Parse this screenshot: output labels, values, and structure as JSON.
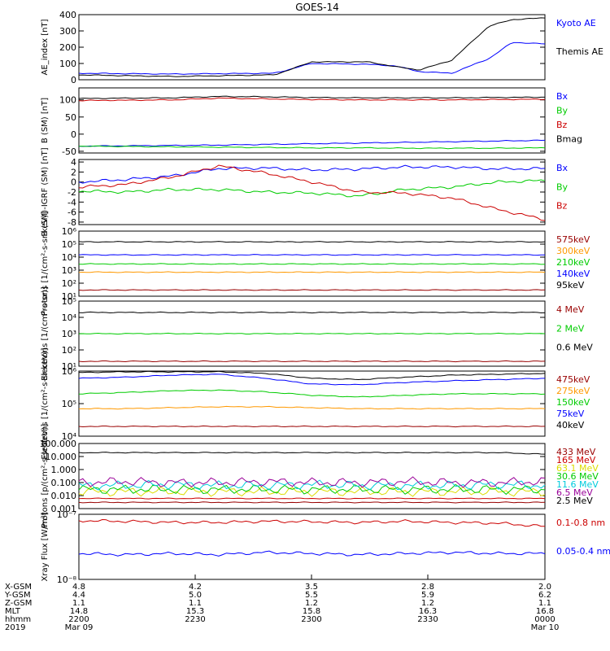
{
  "title": "GOES-14",
  "colors": {
    "black": "#000000",
    "blue": "#0000ff",
    "green": "#00cc00",
    "red": "#cc0000",
    "orange": "#ff9900",
    "yellow": "#dddd00",
    "cyan": "#00ccdd",
    "purple": "#990099",
    "darkred": "#990000"
  },
  "chart_data": [
    {
      "type": "line",
      "ylabel": "AE_index [nT]",
      "ylim": [
        0,
        400
      ],
      "yticks": [
        "0",
        "100",
        "200",
        "300",
        "400"
      ],
      "scale": "linear",
      "series": [
        {
          "name": "Kyoto AE",
          "color": "blue",
          "x": [
            0,
            0.2,
            0.42,
            0.5,
            0.62,
            0.68,
            0.73,
            0.8,
            0.88,
            0.93,
            1
          ],
          "values": [
            40,
            35,
            40,
            100,
            95,
            85,
            50,
            40,
            130,
            230,
            220
          ]
        },
        {
          "name": "Themis AE",
          "color": "black",
          "x": [
            0,
            0.2,
            0.42,
            0.5,
            0.62,
            0.68,
            0.73,
            0.8,
            0.88,
            0.93,
            1
          ],
          "values": [
            30,
            20,
            30,
            110,
            110,
            80,
            60,
            120,
            330,
            370,
            380
          ]
        }
      ]
    },
    {
      "type": "line",
      "ylabel": "B (SM) [nT]",
      "ylim": [
        -55,
        135
      ],
      "yticks": [
        "-50",
        "0",
        "50",
        "100"
      ],
      "scale": "linear",
      "series": [
        {
          "name": "Bx",
          "color": "blue",
          "values": [
            -35,
            -34,
            -33,
            -32,
            -30,
            -28,
            -26,
            -24,
            -22,
            -20,
            -18
          ]
        },
        {
          "name": "By",
          "color": "green",
          "values": [
            -35,
            -36,
            -37,
            -38,
            -39,
            -40,
            -40,
            -41,
            -41,
            -41,
            -40
          ]
        },
        {
          "name": "Bz",
          "color": "red",
          "values": [
            98,
            99,
            100,
            105,
            103,
            101,
            100,
            100,
            100,
            101,
            102
          ]
        },
        {
          "name": "Bmag",
          "color": "black",
          "values": [
            104,
            105,
            106,
            110,
            109,
            107,
            106,
            106,
            106,
            107,
            108
          ]
        }
      ]
    },
    {
      "type": "line",
      "ylabel": "B (SM)-IGRF (SM) [nT]",
      "ylim": [
        -8.5,
        4.5
      ],
      "yticks": [
        "-8",
        "-6",
        "-4",
        "-2",
        "0",
        "2",
        "4"
      ],
      "scale": "linear",
      "series": [
        {
          "name": "Bx",
          "color": "blue",
          "values": [
            0,
            0.5,
            1.2,
            2.7,
            2.8,
            2.4,
            2.6,
            3.0,
            3.0,
            2.6,
            2.7
          ]
        },
        {
          "name": "By",
          "color": "green",
          "values": [
            -1.8,
            -2.0,
            -1.5,
            -1.5,
            -2.0,
            -2.2,
            -2.8,
            -1.5,
            -1.0,
            0,
            0.3
          ]
        },
        {
          "name": "Bz",
          "color": "red",
          "values": [
            -1,
            -0.5,
            1.0,
            3.2,
            1.8,
            0,
            -2.0,
            -2.2,
            -3.2,
            -5.5,
            -7.5
          ]
        }
      ]
    },
    {
      "type": "line",
      "ylabel": "Protons [1/(cm²-s-sr-keV)]",
      "ylim": [
        10,
        1000000
      ],
      "yticks": [
        "10¹",
        "10²",
        "10³",
        "10⁴",
        "10⁵",
        "10⁶"
      ],
      "scale": "log",
      "series": [
        {
          "name": "575keV",
          "color": "darkred",
          "values": [
            30,
            30,
            30,
            30,
            30,
            30,
            30,
            30,
            30,
            30,
            30
          ]
        },
        {
          "name": "300keV",
          "color": "orange",
          "values": [
            700,
            700,
            700,
            700,
            700,
            700,
            700,
            700,
            700,
            700,
            700
          ]
        },
        {
          "name": "210keV",
          "color": "green",
          "values": [
            3000,
            3000,
            3000,
            3000,
            3000,
            3000,
            3000,
            3000,
            3000,
            3000,
            3000
          ]
        },
        {
          "name": "140keV",
          "color": "blue",
          "values": [
            15000,
            15000,
            15000,
            15000,
            15000,
            15000,
            15000,
            15000,
            15000,
            15000,
            15000
          ]
        },
        {
          "name": "95keV",
          "color": "black",
          "values": [
            150000,
            150000,
            150000,
            150000,
            150000,
            150000,
            150000,
            150000,
            150000,
            150000,
            150000
          ]
        }
      ]
    },
    {
      "type": "line",
      "ylabel": "Electrons [1/(cm²-s-sr)]",
      "ylim": [
        10,
        100000
      ],
      "yticks": [
        "10¹",
        "10²",
        "10³",
        "10⁴",
        "10⁵"
      ],
      "scale": "log",
      "series": [
        {
          "name": "4 MeV",
          "color": "darkred",
          "values": [
            20,
            20,
            20,
            20,
            20,
            20,
            20,
            20,
            20,
            20,
            20
          ]
        },
        {
          "name": "2 MeV",
          "color": "green",
          "values": [
            1000,
            1000,
            1000,
            1000,
            1000,
            1000,
            1000,
            1000,
            1000,
            1000,
            1000
          ]
        },
        {
          "name": "0.6 MeV",
          "color": "black",
          "values": [
            20000,
            20000,
            20000,
            20000,
            20000,
            20000,
            20000,
            20000,
            20000,
            20000,
            20000
          ]
        }
      ]
    },
    {
      "type": "line",
      "ylabel": "Electrons [1/(cm²-s-sr-keV)]",
      "ylim": [
        10000,
        1000000
      ],
      "yticks": [
        "10⁴",
        "10⁵",
        "10⁶"
      ],
      "scale": "log",
      "series": [
        {
          "name": "475keV",
          "color": "darkred",
          "values": [
            20000,
            20000,
            20000,
            20000,
            20000,
            20000,
            20000,
            20000,
            20000,
            20000,
            20000
          ]
        },
        {
          "name": "275keV",
          "color": "orange",
          "values": [
            70000,
            70000,
            75000,
            80000,
            80000,
            75000,
            70000,
            70000,
            70000,
            70000,
            70000
          ]
        },
        {
          "name": "150keV",
          "color": "green",
          "values": [
            200000,
            220000,
            250000,
            260000,
            230000,
            180000,
            160000,
            180000,
            200000,
            200000,
            200000
          ]
        },
        {
          "name": "75keV",
          "color": "blue",
          "values": [
            600000,
            650000,
            750000,
            800000,
            600000,
            400000,
            380000,
            450000,
            500000,
            550000,
            600000
          ]
        },
        {
          "name": "40keV",
          "color": "black",
          "values": [
            900000,
            950000,
            950000,
            950000,
            850000,
            600000,
            550000,
            650000,
            750000,
            800000,
            850000
          ]
        }
      ]
    },
    {
      "type": "line",
      "ylabel": "Protons [p/(cm²-s-sr-keV)]",
      "ylim": [
        0.001,
        100
      ],
      "yticks": [
        "0.001",
        "0.010",
        "0.100",
        "1.000",
        "10.000",
        "100.000"
      ],
      "scale": "log",
      "series": [
        {
          "name": "433 MeV",
          "color": "darkred",
          "values": [
            0.003,
            0.003,
            0.003,
            0.003,
            0.003,
            0.003,
            0.003,
            0.003,
            0.003,
            0.003,
            0.003
          ]
        },
        {
          "name": "165 MeV",
          "color": "red",
          "values": [
            0.006,
            0.006,
            0.006,
            0.006,
            0.006,
            0.006,
            0.006,
            0.006,
            0.006,
            0.006,
            0.006
          ]
        },
        {
          "name": "63.1 MeV",
          "color": "yellow",
          "values": [
            0.02,
            0.02,
            0.02,
            0.02,
            0.02,
            0.02,
            0.02,
            0.02,
            0.02,
            0.02,
            0.02
          ]
        },
        {
          "name": "30.6 MeV",
          "color": "green",
          "values": [
            0.03,
            0.03,
            0.03,
            0.03,
            0.03,
            0.03,
            0.03,
            0.03,
            0.03,
            0.03,
            0.03
          ]
        },
        {
          "name": "11.6 MeV",
          "color": "cyan",
          "values": [
            0.06,
            0.06,
            0.07,
            0.06,
            0.06,
            0.07,
            0.06,
            0.06,
            0.06,
            0.07,
            0.06
          ]
        },
        {
          "name": "6.5 MeV",
          "color": "purple",
          "values": [
            0.1,
            0.12,
            0.1,
            0.1,
            0.12,
            0.1,
            0.1,
            0.12,
            0.1,
            0.1,
            0.12
          ]
        },
        {
          "name": "2.5 MeV",
          "color": "black",
          "values": [
            20,
            20,
            20,
            20,
            20,
            20,
            20,
            20,
            20,
            20,
            15
          ]
        }
      ]
    },
    {
      "type": "line",
      "ylabel": "Xray Flux [W/m²]",
      "ylim": [
        1e-08,
        1e-07
      ],
      "yticks": [
        "10⁻⁸",
        "10⁻⁷"
      ],
      "scale": "log",
      "series": [
        {
          "name": "0.1-0.8 nm",
          "color": "red",
          "values": [
            8e-08,
            7.8e-08,
            7.5e-08,
            7.5e-08,
            7.8e-08,
            7.7e-08,
            7.5e-08,
            7.8e-08,
            7.5e-08,
            7.3e-08,
            6.5e-08
          ]
        },
        {
          "name": "0.05-0.4 nm",
          "color": "blue",
          "values": [
            2.5e-08,
            2.4e-08,
            2.5e-08,
            2.4e-08,
            2.6e-08,
            2.5e-08,
            2.4e-08,
            2.5e-08,
            2.6e-08,
            2.5e-08,
            2.5e-08
          ]
        }
      ]
    }
  ],
  "xaxis": {
    "row_labels": [
      "X-GSM",
      "Y-GSM",
      "Z-GSM",
      "MLT",
      "hhmm",
      "2019"
    ],
    "columns": [
      [
        "4.8",
        "4.4",
        "1.1",
        "14.8",
        "2200",
        "Mar 09"
      ],
      [
        "4.2",
        "5.0",
        "1.1",
        "15.3",
        "2230",
        ""
      ],
      [
        "3.5",
        "5.5",
        "1.2",
        "15.8",
        "2300",
        ""
      ],
      [
        "2.8",
        "5.9",
        "1.2",
        "16.3",
        "2330",
        ""
      ],
      [
        "2.0",
        "6.2",
        "1.1",
        "16.8",
        "0000",
        "Mar 10"
      ]
    ]
  }
}
